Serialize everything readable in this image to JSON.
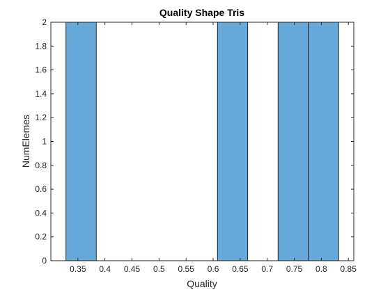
{
  "chart_data": {
    "type": "bar",
    "title": "Quality Shape Tris",
    "xlabel": "Quality",
    "ylabel": "NumElemes",
    "xlim": [
      0.3,
      0.86
    ],
    "ylim": [
      0,
      2
    ],
    "xticks": [
      0.35,
      0.4,
      0.45,
      0.5,
      0.55,
      0.6,
      0.65,
      0.7,
      0.75,
      0.8,
      0.85
    ],
    "xtick_labels": [
      "0.35",
      "0.4",
      "0.45",
      "0.5",
      "0.55",
      "0.6",
      "0.65",
      "0.7",
      "0.75",
      "0.8",
      "0.85"
    ],
    "yticks": [
      0,
      0.2,
      0.4,
      0.6,
      0.8,
      1,
      1.2,
      1.4,
      1.6,
      1.8,
      2
    ],
    "ytick_labels": [
      "0",
      "0.2",
      "0.4",
      "0.6",
      "0.8",
      "1",
      "1.2",
      "1.4",
      "1.6",
      "1.8",
      "2"
    ],
    "bins": [
      {
        "start": 0.328,
        "end": 0.384,
        "count": 2
      },
      {
        "start": 0.384,
        "end": 0.44,
        "count": 0
      },
      {
        "start": 0.44,
        "end": 0.496,
        "count": 0
      },
      {
        "start": 0.496,
        "end": 0.552,
        "count": 0
      },
      {
        "start": 0.552,
        "end": 0.608,
        "count": 0
      },
      {
        "start": 0.608,
        "end": 0.664,
        "count": 2
      },
      {
        "start": 0.664,
        "end": 0.72,
        "count": 0
      },
      {
        "start": 0.72,
        "end": 0.776,
        "count": 2
      },
      {
        "start": 0.776,
        "end": 0.832,
        "count": 2
      }
    ],
    "grid": false,
    "bar_color": "#66a9d8",
    "edge_color": "#000000"
  }
}
